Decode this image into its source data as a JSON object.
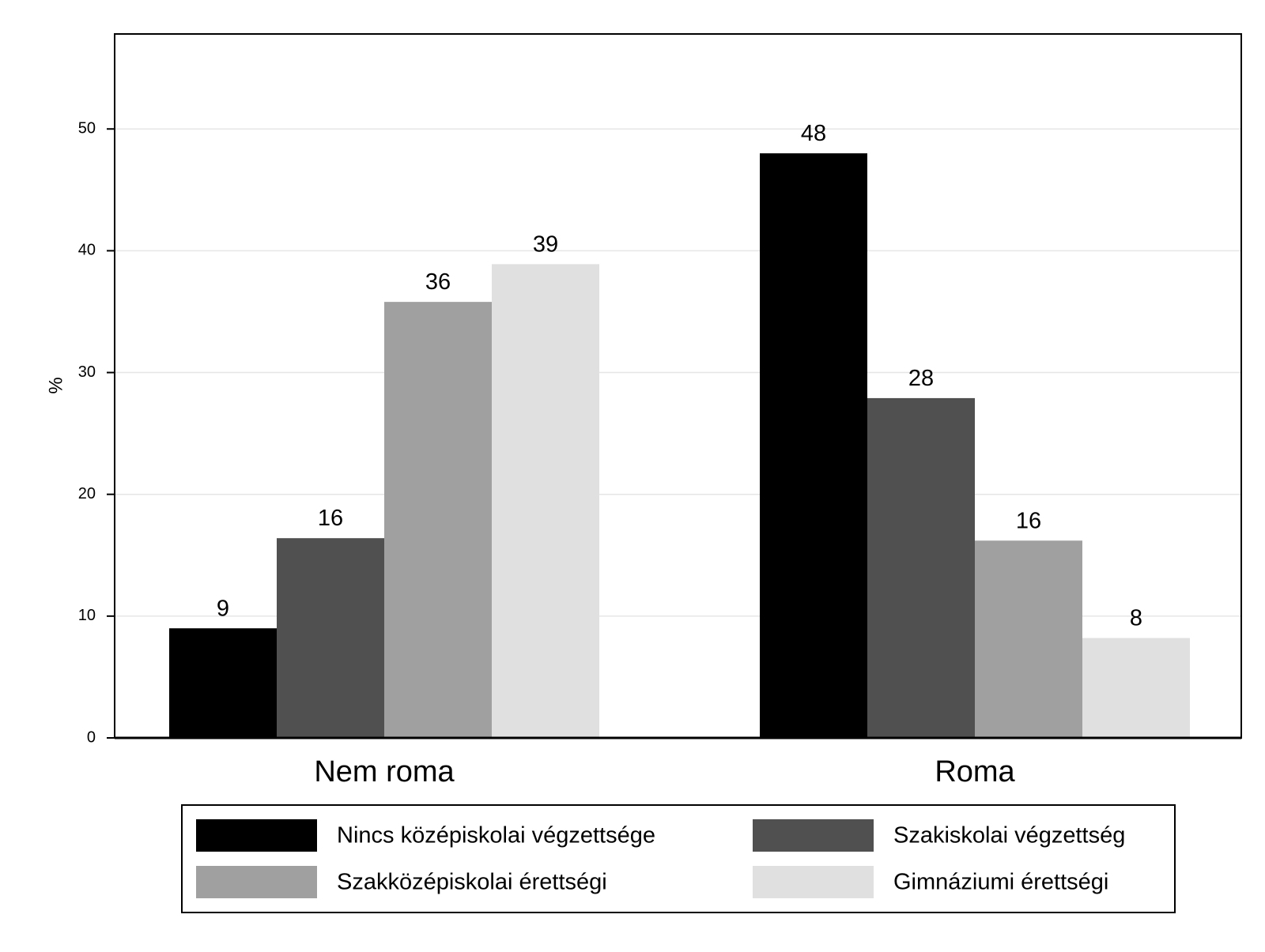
{
  "chart_data": {
    "type": "bar",
    "title": "",
    "xlabel": "",
    "ylabel": "%",
    "ylim": [
      0,
      57.8
    ],
    "yticks": [
      0,
      10,
      20,
      30,
      40,
      50
    ],
    "grid": true,
    "legend_position": "bottom",
    "categories": [
      "Nem roma",
      "Roma"
    ],
    "series": [
      {
        "name": "Nincs középiskolai végzettsége",
        "values": [
          9,
          48
        ],
        "labels": [
          "9",
          "48"
        ],
        "color": "#000000"
      },
      {
        "name": "Szakiskolai végzettség",
        "values": [
          16.4,
          27.9
        ],
        "labels": [
          "16",
          "28"
        ],
        "color": "#505050"
      },
      {
        "name": "Szakközépiskolai érettségi",
        "values": [
          35.8,
          16.2
        ],
        "labels": [
          "36",
          "16"
        ],
        "color": "#a0a0a0"
      },
      {
        "name": "Gimnáziumi érettségi",
        "values": [
          38.9,
          8.2
        ],
        "labels": [
          "39",
          "8"
        ],
        "color": "#e0e0e0"
      }
    ]
  }
}
